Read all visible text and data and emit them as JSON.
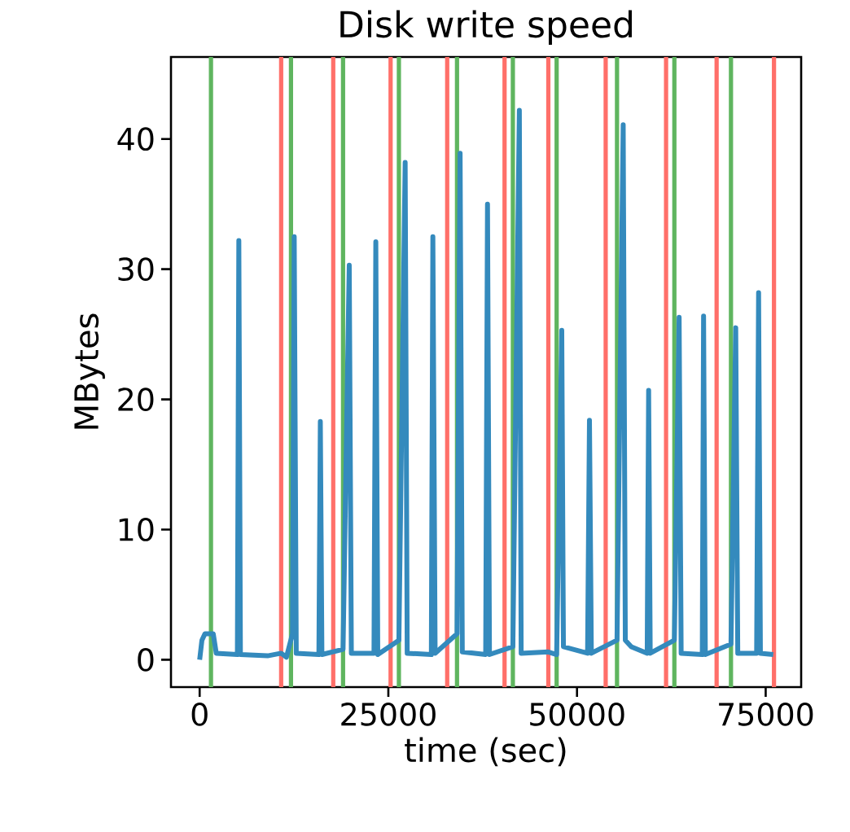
{
  "chart_data": {
    "type": "line",
    "title": "Disk write speed",
    "xlabel": "time (sec)",
    "ylabel": "MBytes",
    "xlim": [
      -3800,
      79700
    ],
    "ylim": [
      -2.1,
      46.3
    ],
    "xticks": [
      0,
      25000,
      50000,
      75000
    ],
    "yticks": [
      0,
      10,
      20,
      30,
      40
    ],
    "line_style": "solid",
    "series": [
      {
        "color": "#348abd",
        "x": [
          0,
          300,
          700,
          1800,
          2200,
          5000,
          5190,
          5400,
          9000,
          10800,
          11500,
          12300,
          12530,
          12800,
          15800,
          15990,
          16200,
          19000,
          19820,
          20100,
          23100,
          23340,
          23600,
          26400,
          27230,
          27500,
          30700,
          30900,
          31200,
          34100,
          34510,
          34800,
          37900,
          38140,
          38400,
          41500,
          42360,
          42600,
          46200,
          47300,
          47980,
          48200,
          51400,
          51650,
          51900,
          55300,
          56120,
          56400,
          57200,
          59300,
          59490,
          59700,
          62900,
          63530,
          63800,
          66600,
          66770,
          67000,
          70400,
          71030,
          71300,
          73800,
          74060,
          74300,
          76000
        ],
        "values": [
          0.0,
          1.5,
          2.0,
          2.0,
          0.5,
          0.4,
          32.2,
          0.4,
          0.3,
          0.5,
          0.2,
          2.0,
          32.5,
          0.5,
          0.4,
          18.3,
          0.4,
          0.8,
          30.3,
          0.5,
          0.5,
          32.1,
          0.4,
          1.5,
          38.2,
          0.5,
          0.4,
          32.5,
          0.5,
          2.0,
          38.9,
          0.6,
          0.4,
          35.0,
          0.4,
          1.0,
          42.2,
          0.5,
          0.6,
          0.4,
          25.3,
          1.0,
          0.5,
          18.4,
          0.5,
          1.5,
          41.1,
          1.5,
          1.0,
          0.5,
          20.7,
          0.5,
          1.5,
          26.3,
          0.5,
          0.4,
          26.4,
          0.4,
          1.2,
          25.5,
          0.5,
          0.5,
          28.2,
          0.5,
          0.4
        ]
      }
    ],
    "ref_lines": [
      {
        "axis": "x",
        "value": 1500,
        "color": "#5fb55f"
      },
      {
        "axis": "x",
        "value": 10800,
        "color": "#ff6f69"
      },
      {
        "axis": "x",
        "value": 12100,
        "color": "#5fb55f"
      },
      {
        "axis": "x",
        "value": 17700,
        "color": "#ff6f69"
      },
      {
        "axis": "x",
        "value": 19000,
        "color": "#5fb55f"
      },
      {
        "axis": "x",
        "value": 25300,
        "color": "#ff6f69"
      },
      {
        "axis": "x",
        "value": 26400,
        "color": "#5fb55f"
      },
      {
        "axis": "x",
        "value": 32800,
        "color": "#ff6f69"
      },
      {
        "axis": "x",
        "value": 34100,
        "color": "#5fb55f"
      },
      {
        "axis": "x",
        "value": 40400,
        "color": "#ff6f69"
      },
      {
        "axis": "x",
        "value": 41500,
        "color": "#5fb55f"
      },
      {
        "axis": "x",
        "value": 46200,
        "color": "#ff6f69"
      },
      {
        "axis": "x",
        "value": 47300,
        "color": "#5fb55f"
      },
      {
        "axis": "x",
        "value": 53800,
        "color": "#ff6f69"
      },
      {
        "axis": "x",
        "value": 55300,
        "color": "#5fb55f"
      },
      {
        "axis": "x",
        "value": 61800,
        "color": "#ff6f69"
      },
      {
        "axis": "x",
        "value": 62900,
        "color": "#5fb55f"
      },
      {
        "axis": "x",
        "value": 68500,
        "color": "#ff6f69"
      },
      {
        "axis": "x",
        "value": 70400,
        "color": "#5fb55f"
      },
      {
        "axis": "x",
        "value": 76100,
        "color": "#ff6f69"
      }
    ]
  }
}
